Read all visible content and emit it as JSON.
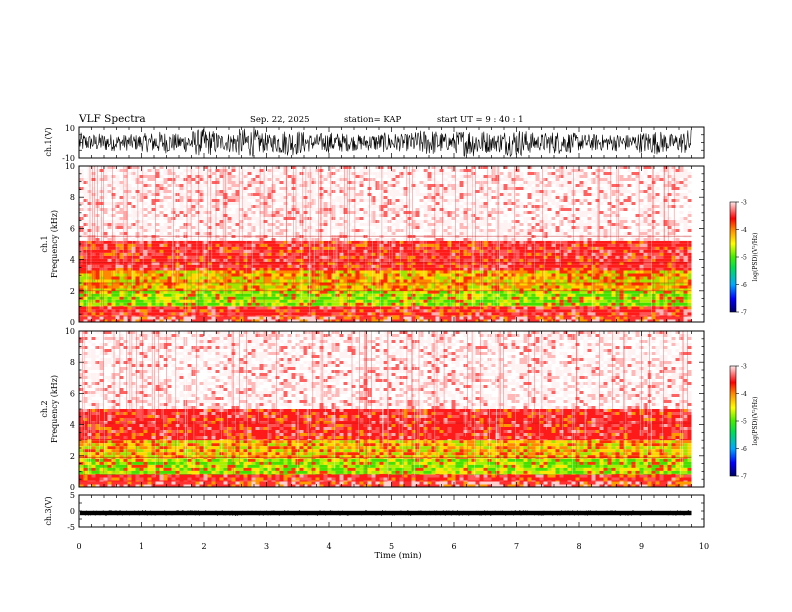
{
  "header": {
    "title": "VLF Spectra",
    "date": "Sep. 22, 2025",
    "station": "station= KAP",
    "start_ut": "start  UT =  9 : 40 : 1"
  },
  "chart_data": [
    {
      "type": "line",
      "name": "ch1-waveform",
      "ylabel": "ch.1(V)",
      "ylim": [
        -10,
        10
      ],
      "y_ticks": [
        "10",
        "-10"
      ],
      "xlim": [
        0,
        10
      ],
      "data_end_min": 9.8,
      "signal": "dense noise, roughly -10 to 10 V",
      "color": "#000000"
    },
    {
      "type": "heatmap",
      "name": "ch1-spectrogram",
      "ylabel_top": "ch.1",
      "ylabel": "Frequency  (kHz)",
      "ylim": [
        0,
        10
      ],
      "y_ticks": [
        "0",
        "2",
        "4",
        "6",
        "8",
        "10"
      ],
      "xlim": [
        0,
        10
      ],
      "data_end_min": 9.8,
      "colorbar": {
        "label": "log(PSD)(V²/Hz)",
        "range": [
          -7,
          -3
        ],
        "ticks": [
          "-3",
          "-4",
          "-5",
          "-6",
          "-7"
        ]
      },
      "bands": [
        {
          "from_khz": 0.0,
          "to_khz": 0.35,
          "level": "red/white lines"
        },
        {
          "from_khz": 0.35,
          "to_khz": 1.0,
          "level": "red"
        },
        {
          "from_khz": 1.0,
          "to_khz": 2.0,
          "level": "green/yellow"
        },
        {
          "from_khz": 2.0,
          "to_khz": 3.3,
          "level": "yellow/red"
        },
        {
          "from_khz": 3.3,
          "to_khz": 5.2,
          "level": "red"
        },
        {
          "from_khz": 5.2,
          "to_khz": 10.0,
          "level": "white/light red speckle"
        }
      ],
      "lines_khz": [
        2.0,
        2.5,
        3.8,
        5.5
      ]
    },
    {
      "type": "heatmap",
      "name": "ch2-spectrogram",
      "ylabel_top": "ch.2",
      "ylabel": "Frequency  (kHz)",
      "ylim": [
        0,
        10
      ],
      "y_ticks": [
        "0",
        "2",
        "4",
        "6",
        "8",
        "10"
      ],
      "xlim": [
        0,
        10
      ],
      "data_end_min": 9.8,
      "colorbar": {
        "label": "log(PSD)(V²/Hz)",
        "range": [
          -7,
          -3
        ],
        "ticks": [
          "-3",
          "-4",
          "-5",
          "-6",
          "-7"
        ]
      },
      "bands": [
        {
          "from_khz": 0.0,
          "to_khz": 0.35,
          "level": "red/white lines"
        },
        {
          "from_khz": 0.35,
          "to_khz": 0.8,
          "level": "red"
        },
        {
          "from_khz": 0.8,
          "to_khz": 1.8,
          "level": "green/yellow"
        },
        {
          "from_khz": 1.8,
          "to_khz": 3.0,
          "level": "yellow/red"
        },
        {
          "from_khz": 3.0,
          "to_khz": 5.0,
          "level": "red"
        },
        {
          "from_khz": 5.0,
          "to_khz": 10.0,
          "level": "white/light red speckle"
        }
      ],
      "lines_khz": [
        1.9,
        4.1
      ]
    },
    {
      "type": "line",
      "name": "ch3-waveform",
      "ylabel": "ch.3(V)",
      "ylim": [
        -5,
        5
      ],
      "y_ticks": [
        "5",
        "0",
        "-5"
      ],
      "xlim": [
        0,
        10
      ],
      "data_end_min": 9.8,
      "signal": "thin dense band near 0 V",
      "color": "#000000"
    }
  ],
  "x_axis": {
    "label": "Time  (min)",
    "ticks": [
      "0",
      "1",
      "2",
      "3",
      "4",
      "5",
      "6",
      "7",
      "8",
      "9",
      "10"
    ]
  }
}
